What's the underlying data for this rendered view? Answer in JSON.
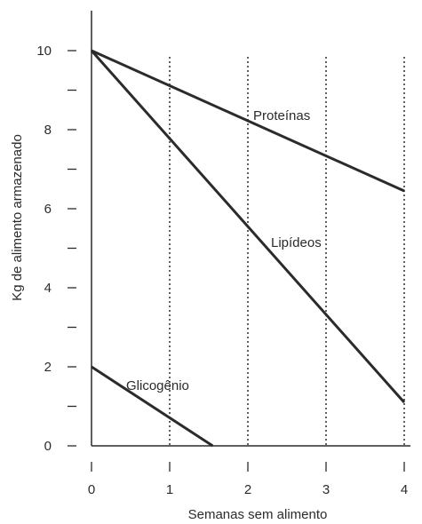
{
  "chart_data": {
    "type": "line",
    "title": "",
    "xlabel": "Semanas sem alimento",
    "ylabel": "Kg de alimento armazenado",
    "xlim": [
      0,
      4
    ],
    "ylim": [
      0,
      10
    ],
    "x_ticks": [
      "0",
      "1",
      "2",
      "3",
      "4"
    ],
    "y_ticks": [
      "0",
      "2",
      "4",
      "6",
      "8",
      "10"
    ],
    "vertical_dotted_gridlines_at_x": [
      1,
      2,
      3,
      4
    ],
    "legend": "none (series labeled inline)",
    "series": [
      {
        "name": "Proteínas",
        "points": [
          [
            0,
            10
          ],
          [
            4,
            6.45
          ]
        ]
      },
      {
        "name": "Lipídeos",
        "points": [
          [
            0,
            10
          ],
          [
            4,
            1.1
          ]
        ]
      },
      {
        "name": "Glicogênio",
        "points": [
          [
            0,
            2
          ],
          [
            1.55,
            0
          ]
        ]
      }
    ],
    "colors": {
      "line": "#2b2b2b",
      "axis": "#2b2b2b",
      "grid": "#2b2b2b"
    }
  }
}
